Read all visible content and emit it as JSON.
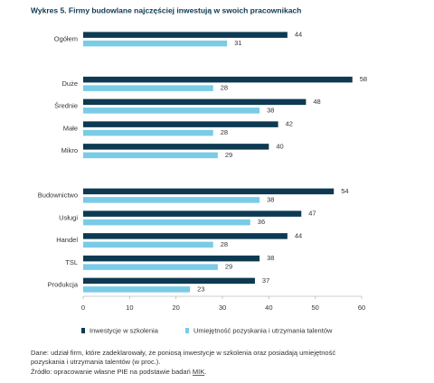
{
  "chart_data": {
    "type": "hbar",
    "title": "Wykres 5.  Firmy budowlane najczęściej inwestują w swoich pracownikach",
    "categories": [
      "Ogółem",
      null,
      "Duże",
      "Średnie",
      "Małe",
      "Mikro",
      null,
      "Budownictwo",
      "Usługi",
      "Handel",
      "TSL",
      "Produkcja"
    ],
    "series": [
      {
        "name": "Inwestycje w szkolenia",
        "color": "#0d3a52",
        "values": [
          44,
          null,
          58,
          48,
          42,
          40,
          null,
          54,
          47,
          44,
          38,
          37
        ]
      },
      {
        "name": "Umiejętność pozyskania i utrzymania talentów",
        "color": "#79cbe6",
        "values": [
          31,
          null,
          28,
          38,
          28,
          29,
          null,
          38,
          36,
          28,
          29,
          23
        ]
      }
    ],
    "xlim": [
      0,
      60
    ],
    "xticks": [
      0,
      10,
      20,
      30,
      40,
      50,
      60
    ],
    "grid": false,
    "notes": [
      "Dane: udział firm, które zadeklarowały, że poniosą inwestycje w szkolenia oraz posiadają umiejętność",
      "pozyskania i utrzymania talentów (w proc.)."
    ],
    "source": {
      "text": "Źródło: opracowanie własne PIE na podstawie badań ",
      "link": "MIK",
      "end": "."
    }
  }
}
